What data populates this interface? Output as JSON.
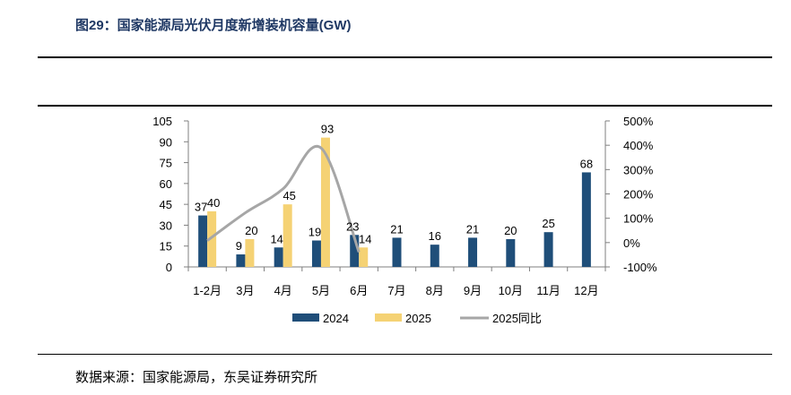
{
  "header": {
    "title": "图29：国家能源局光伏月度新增装机容量(GW)"
  },
  "footer": {
    "source": "数据来源：国家能源局，东吴证券研究所"
  },
  "chart_data": {
    "type": "bar",
    "title": "图29：国家能源局光伏月度新增装机容量(GW)",
    "categories": [
      "1-2月",
      "3月",
      "4月",
      "5月",
      "6月",
      "7月",
      "8月",
      "9月",
      "10月",
      "11月",
      "12月"
    ],
    "series": [
      {
        "name": "2024",
        "type": "bar",
        "axis": "left",
        "color": "#1f4e79",
        "values": [
          37,
          9,
          14,
          19,
          23,
          21,
          16,
          21,
          20,
          25,
          68
        ]
      },
      {
        "name": "2025",
        "type": "bar",
        "axis": "left",
        "color": "#f5d274",
        "values": [
          40,
          20,
          45,
          93,
          14,
          null,
          null,
          null,
          null,
          null,
          null
        ]
      },
      {
        "name": "2025同比",
        "type": "line",
        "axis": "right",
        "color": "#a6a6a6",
        "values": [
          0.08,
          1.22,
          2.21,
          3.89,
          -0.39,
          null,
          null,
          null,
          null,
          null,
          null
        ]
      }
    ],
    "y_left": {
      "min": 0,
      "max": 105,
      "ticks": [
        0,
        15,
        30,
        45,
        60,
        75,
        90,
        105
      ]
    },
    "y_right": {
      "min": -1.0,
      "max": 5.0,
      "ticks": [
        -1,
        0,
        1,
        2,
        3,
        4,
        5
      ],
      "tick_labels": [
        "-100%",
        "0%",
        "100%",
        "200%",
        "300%",
        "400%",
        "500%"
      ]
    },
    "legend": {
      "position": "bottom",
      "entries": [
        "2024",
        "2025",
        "2025同比"
      ]
    },
    "grid": false
  }
}
